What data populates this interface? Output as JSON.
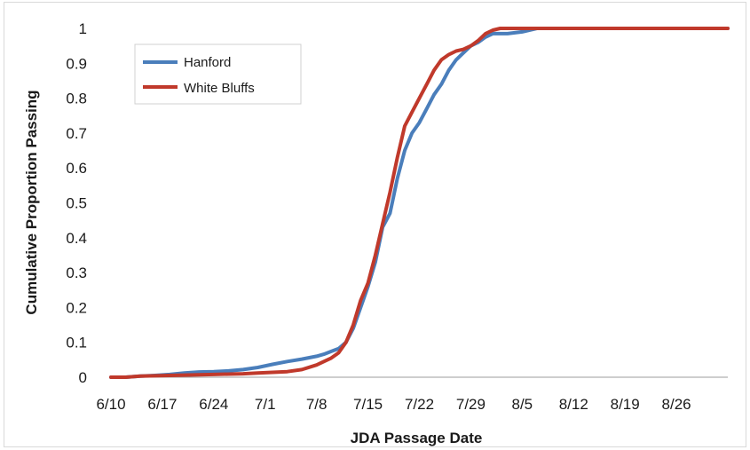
{
  "chart_data": {
    "type": "line",
    "title": "",
    "xlabel": "JDA Passage Date",
    "ylabel": "Cumulative Proportion Passing",
    "x_tick_labels": [
      "6/10",
      "6/17",
      "6/24",
      "7/1",
      "7/8",
      "7/15",
      "7/22",
      "7/29",
      "8/5",
      "8/12",
      "8/19",
      "8/26"
    ],
    "y_tick_labels": [
      "0",
      "0.1",
      "0.2",
      "0.3",
      "0.4",
      "0.5",
      "0.6",
      "0.7",
      "0.8",
      "0.9",
      "1"
    ],
    "xlim": [
      "6/10",
      "9/2"
    ],
    "ylim": [
      0,
      1
    ],
    "grid": false,
    "legend_position": "top-left",
    "series": [
      {
        "name": "Hanford",
        "color": "#4a7ebb",
        "x": [
          "6/10",
          "6/12",
          "6/14",
          "6/16",
          "6/18",
          "6/20",
          "6/22",
          "6/24",
          "6/26",
          "6/28",
          "6/30",
          "7/2",
          "7/4",
          "7/6",
          "7/8",
          "7/9",
          "7/10",
          "7/11",
          "7/12",
          "7/13",
          "7/14",
          "7/15",
          "7/16",
          "7/17",
          "7/18",
          "7/19",
          "7/20",
          "7/21",
          "7/22",
          "7/23",
          "7/24",
          "7/25",
          "7/26",
          "7/27",
          "7/28",
          "7/29",
          "7/30",
          "7/31",
          "8/1",
          "8/2",
          "8/3",
          "8/5",
          "8/7",
          "8/10",
          "8/15",
          "8/20",
          "8/25",
          "9/2"
        ],
        "y": [
          0,
          0,
          0.003,
          0.005,
          0.008,
          0.012,
          0.015,
          0.016,
          0.018,
          0.022,
          0.028,
          0.037,
          0.045,
          0.052,
          0.06,
          0.066,
          0.074,
          0.082,
          0.1,
          0.14,
          0.2,
          0.26,
          0.33,
          0.43,
          0.47,
          0.57,
          0.65,
          0.7,
          0.73,
          0.77,
          0.81,
          0.84,
          0.88,
          0.91,
          0.93,
          0.95,
          0.96,
          0.975,
          0.985,
          0.985,
          0.985,
          0.99,
          1,
          1,
          1,
          1,
          1,
          1
        ]
      },
      {
        "name": "White Bluffs",
        "color": "#c0392b",
        "x": [
          "6/10",
          "6/12",
          "6/14",
          "6/16",
          "6/18",
          "6/20",
          "6/22",
          "6/24",
          "6/26",
          "6/28",
          "6/30",
          "7/2",
          "7/4",
          "7/6",
          "7/8",
          "7/9",
          "7/10",
          "7/11",
          "7/12",
          "7/13",
          "7/14",
          "7/15",
          "7/16",
          "7/17",
          "7/18",
          "7/19",
          "7/20",
          "7/21",
          "7/22",
          "7/23",
          "7/24",
          "7/25",
          "7/26",
          "7/27",
          "7/28",
          "7/29",
          "7/30",
          "7/31",
          "8/1",
          "8/2",
          "8/3",
          "8/5",
          "8/7",
          "8/10",
          "8/15",
          "8/20",
          "8/25",
          "9/2"
        ],
        "y": [
          0,
          0,
          0.003,
          0.004,
          0.005,
          0.006,
          0.007,
          0.008,
          0.009,
          0.01,
          0.012,
          0.014,
          0.016,
          0.022,
          0.035,
          0.045,
          0.055,
          0.07,
          0.1,
          0.15,
          0.22,
          0.27,
          0.35,
          0.44,
          0.53,
          0.63,
          0.72,
          0.76,
          0.8,
          0.84,
          0.88,
          0.91,
          0.925,
          0.935,
          0.94,
          0.95,
          0.965,
          0.985,
          0.995,
          1,
          1,
          1,
          1,
          1,
          1,
          1,
          1,
          1
        ]
      }
    ]
  }
}
